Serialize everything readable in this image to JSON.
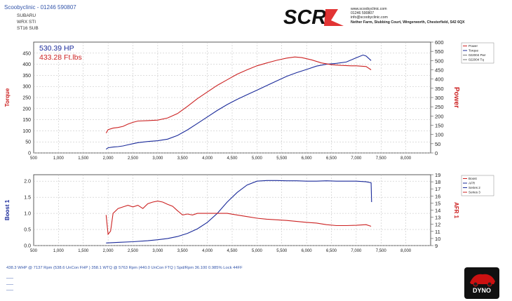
{
  "header": {
    "shop": "Scoobyclinic - 01246 590807",
    "lines": [
      "SUBARU",
      "WRX STI",
      "ST16 SUB"
    ]
  },
  "logo": {
    "text": "SCR"
  },
  "contact": {
    "lines": [
      "www.scoobyclinic.com",
      "01246 590807",
      "info@scoobyclinic.com",
      "Nether Farm, Stubbing Court, Wingerworth, Chesterfield, S42 6QX"
    ]
  },
  "summary": "438.3 WHP @ 7137 Rpm (538.6 UnCon FHP )   358.1 WTQ @ 5763 Rpm (440.0 UnCon FTQ )  Spd/Rpm 36.100 0.985% Lock 44FF",
  "dash_lines": [
    "___",
    "___",
    "___"
  ],
  "badge": {
    "label": "DYNO"
  },
  "chart_data": [
    {
      "type": "line",
      "title": "",
      "xlim": [
        500,
        8500
      ],
      "xticks": [
        "500",
        "1,000",
        "1,500",
        "2,000",
        "2,500",
        "3,000",
        "3,500",
        "4,000",
        "4,500",
        "5,000",
        "5,500",
        "6,000",
        "6,500",
        "7,000",
        "7,500",
        "8,000"
      ],
      "left_axis": {
        "label": "Torque",
        "ylim": [
          0,
          500
        ],
        "ticks": [
          "0",
          "50",
          "100",
          "150",
          "200",
          "250",
          "300",
          "350",
          "400",
          "450"
        ],
        "color": "#cc2222"
      },
      "right_axis": {
        "label": "Power",
        "ylim": [
          0,
          600
        ],
        "ticks": [
          "0",
          "50",
          "100",
          "150",
          "200",
          "250",
          "300",
          "350",
          "400",
          "450",
          "500",
          "550",
          "600"
        ],
        "color": "#cc2222"
      },
      "annotations": [
        {
          "text": "530.39 HP",
          "color": "#1a2a9a"
        },
        {
          "text": "433.28 Ft.lbs",
          "color": "#cc2222"
        }
      ],
      "legend": {
        "position": "top-right",
        "entries": [
          {
            "label": "Power",
            "color": "#cc2222"
          },
          {
            "label": "Torque",
            "color": "#1a2a9a"
          },
          {
            "label": "022004 Pwr",
            "color": "#777777"
          },
          {
            "label": "022004 Tq",
            "color": "#777777"
          }
        ]
      },
      "grid": true,
      "series": [
        {
          "name": "Power",
          "color": "#1a2a9a",
          "axis": "right",
          "x": [
            1960,
            2000,
            2100,
            2200,
            2300,
            2400,
            2500,
            2600,
            2800,
            3000,
            3200,
            3400,
            3600,
            3800,
            4000,
            4200,
            4400,
            4600,
            4800,
            5000,
            5200,
            5400,
            5600,
            5800,
            6000,
            6200,
            6400,
            6600,
            6800,
            7000,
            7137,
            7200,
            7300
          ],
          "y": [
            20,
            28,
            32,
            34,
            38,
            44,
            50,
            56,
            62,
            66,
            75,
            95,
            125,
            160,
            195,
            230,
            262,
            290,
            315,
            340,
            365,
            390,
            415,
            435,
            452,
            470,
            480,
            485,
            492,
            515,
            530,
            525,
            500
          ]
        },
        {
          "name": "Torque",
          "color": "#cc2222",
          "axis": "left",
          "x": [
            1960,
            2000,
            2100,
            2200,
            2300,
            2400,
            2500,
            2600,
            2800,
            3000,
            3200,
            3400,
            3600,
            3800,
            4000,
            4200,
            4400,
            4600,
            4800,
            5000,
            5200,
            5400,
            5600,
            5763,
            5900,
            6100,
            6300,
            6500,
            6700,
            6900,
            7000,
            7200,
            7300
          ],
          "y": [
            90,
            105,
            112,
            115,
            120,
            130,
            138,
            144,
            146,
            148,
            158,
            178,
            210,
            245,
            275,
            305,
            330,
            355,
            375,
            393,
            406,
            418,
            428,
            433,
            430,
            420,
            406,
            398,
            395,
            393,
            393,
            390,
            375
          ]
        }
      ]
    },
    {
      "type": "line",
      "title": "",
      "xlim": [
        500,
        8500
      ],
      "xticks": [
        "500",
        "1,000",
        "1,500",
        "2,000",
        "2,500",
        "3,000",
        "3,500",
        "4,000",
        "4,500",
        "5,000",
        "5,500",
        "6,000",
        "6,500",
        "7,000",
        "7,500",
        "8,000"
      ],
      "left_axis": {
        "label": "Boost 1",
        "ylim": [
          0,
          2.2
        ],
        "ticks": [
          "0.0",
          "0.5",
          "1.0",
          "1.5",
          "2.0"
        ],
        "color": "#1a2a9a"
      },
      "right_axis": {
        "label": "AFR 1",
        "ylim": [
          9,
          19
        ],
        "ticks": [
          "9",
          "10",
          "11",
          "12",
          "13",
          "14",
          "15",
          "16",
          "17",
          "18",
          "19"
        ],
        "color": "#cc2222"
      },
      "legend": {
        "position": "top-right",
        "entries": [
          {
            "label": "Boost",
            "color": "#cc2222"
          },
          {
            "label": "AFR",
            "color": "#1a2a9a"
          },
          {
            "label": "Series 2",
            "color": "#1a2a9a"
          },
          {
            "label": "Series 3",
            "color": "#cc2222"
          }
        ]
      },
      "grid": true,
      "series": [
        {
          "name": "Boost",
          "color": "#1a2a9a",
          "axis": "left",
          "x": [
            1960,
            2200,
            2500,
            2800,
            3000,
            3200,
            3400,
            3600,
            3800,
            4000,
            4200,
            4400,
            4600,
            4800,
            5000,
            5200,
            5400,
            5600,
            5800,
            6000,
            6200,
            6400,
            6600,
            6800,
            7000,
            7200,
            7300,
            7310
          ],
          "y": [
            0.08,
            0.1,
            0.12,
            0.15,
            0.18,
            0.22,
            0.28,
            0.38,
            0.52,
            0.72,
            1.0,
            1.35,
            1.65,
            1.88,
            2.0,
            2.02,
            2.02,
            2.01,
            2.01,
            2.0,
            2.0,
            2.01,
            2.0,
            2.0,
            2.0,
            1.98,
            1.95,
            1.35
          ]
        },
        {
          "name": "AFR",
          "color": "#cc2222",
          "axis": "left",
          "x": [
            1960,
            2000,
            2050,
            2100,
            2200,
            2300,
            2400,
            2500,
            2600,
            2700,
            2800,
            2900,
            3000,
            3100,
            3200,
            3300,
            3400,
            3500,
            3600,
            3700,
            3800,
            4000,
            4200,
            4400,
            4600,
            4800,
            5000,
            5200,
            5400,
            5600,
            5800,
            6000,
            6200,
            6400,
            6600,
            6800,
            7000,
            7200,
            7300
          ],
          "y": [
            0.95,
            0.35,
            0.45,
            1.0,
            1.15,
            1.2,
            1.25,
            1.2,
            1.25,
            1.15,
            1.3,
            1.35,
            1.38,
            1.35,
            1.28,
            1.22,
            1.08,
            0.95,
            0.98,
            0.95,
            1.0,
            1.0,
            1.0,
            1.0,
            0.95,
            0.9,
            0.85,
            0.82,
            0.8,
            0.78,
            0.75,
            0.72,
            0.7,
            0.65,
            0.62,
            0.62,
            0.63,
            0.65,
            0.6
          ]
        }
      ]
    }
  ]
}
